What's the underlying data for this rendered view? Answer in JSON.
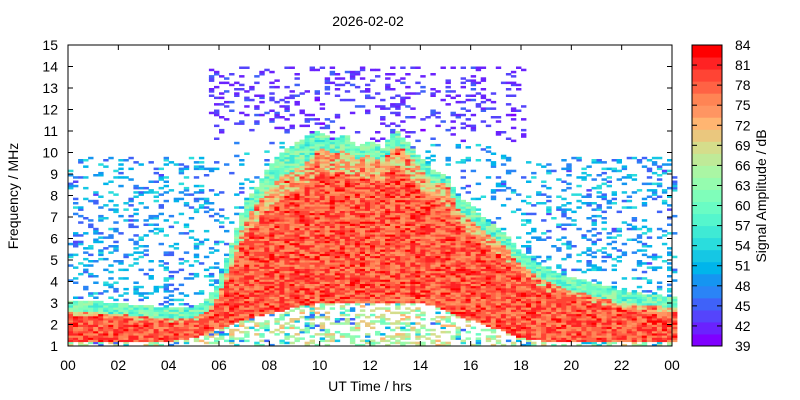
{
  "chart_data": {
    "type": "heatmap",
    "title": "2026-02-02",
    "xlabel": "UT Time / hrs",
    "ylabel": "Frequency / MHz",
    "colorbar_label": "Signal Amplitude / dB",
    "xlim": [
      0,
      24
    ],
    "ylim": [
      1,
      15
    ],
    "x_tick_labels": [
      "00",
      "02",
      "04",
      "06",
      "08",
      "10",
      "12",
      "14",
      "16",
      "18",
      "20",
      "22",
      "00"
    ],
    "y_tick_labels": [
      "1",
      "2",
      "3",
      "4",
      "5",
      "6",
      "7",
      "8",
      "9",
      "10",
      "11",
      "12",
      "13",
      "14",
      "15"
    ],
    "colorbar_range": [
      39,
      84
    ],
    "colorbar_ticks": [
      "39",
      "42",
      "45",
      "48",
      "51",
      "54",
      "57",
      "60",
      "63",
      "66",
      "69",
      "72",
      "75",
      "78",
      "81",
      "84"
    ],
    "colormap": [
      "#7f00ff",
      "#6a22fe",
      "#5544fc",
      "#3f62f9",
      "#2a84f6",
      "#1595f1",
      "#00b5eb",
      "#15c7e4",
      "#2adddd",
      "#3fead5",
      "#55f6cd",
      "#6afcc4",
      "#7ffeba",
      "#95fcaf",
      "#aaf6a4",
      "#bfea98",
      "#d5dd8b",
      "#eac77e",
      "#ffb571",
      "#ff9562",
      "#ff8454",
      "#ff6244",
      "#ff4434",
      "#ff2223",
      "#ff0000"
    ],
    "series": [
      {
        "hours": [
          0,
          1,
          2,
          3,
          4,
          5,
          5.5,
          6,
          6.5,
          7,
          7.5,
          8,
          8.5,
          9,
          9.5,
          10,
          10.5,
          11,
          11.5,
          12,
          12.5,
          13,
          13.5,
          14,
          14.5,
          15,
          15.5,
          16,
          16.5,
          17,
          17.5,
          18,
          18.5,
          19,
          20,
          21,
          22,
          23,
          24
        ],
        "strong_low": [
          1.2,
          1.2,
          1.2,
          1.2,
          1.2,
          1.4,
          1.6,
          1.8,
          2.0,
          2.2,
          2.4,
          2.5,
          2.6,
          2.8,
          2.9,
          3.0,
          3.0,
          3.0,
          3.0,
          3.0,
          3.0,
          3.0,
          3.0,
          3.0,
          2.9,
          2.7,
          2.4,
          2.2,
          2.0,
          1.8,
          1.6,
          1.4,
          1.3,
          1.2,
          1.2,
          1.2,
          1.2,
          1.2,
          1.2
        ],
        "strong_high": [
          2.6,
          2.6,
          2.5,
          2.4,
          2.3,
          2.3,
          2.6,
          3.4,
          5.0,
          6.8,
          7.6,
          8.3,
          8.9,
          9.2,
          9.6,
          10.2,
          10.0,
          10.1,
          9.7,
          9.9,
          9.6,
          10.4,
          10.0,
          9.3,
          8.6,
          8.6,
          7.4,
          6.9,
          6.4,
          6.0,
          5.5,
          4.8,
          4.4,
          4.0,
          3.6,
          3.3,
          3.0,
          2.9,
          2.8
        ],
        "fringe_high": [
          3.1,
          3.1,
          3.0,
          2.9,
          2.8,
          2.8,
          3.2,
          4.0,
          5.8,
          7.6,
          8.4,
          9.4,
          10.0,
          10.4,
          10.8,
          11.0,
          10.6,
          10.9,
          10.3,
          10.6,
          10.2,
          11.1,
          10.5,
          9.8,
          9.2,
          9.0,
          8.0,
          7.6,
          7.0,
          6.6,
          6.1,
          5.4,
          5.0,
          4.6,
          4.2,
          3.9,
          3.6,
          3.4,
          3.3
        ]
      }
    ],
    "grid": false,
    "legend": "colorbar-right"
  }
}
